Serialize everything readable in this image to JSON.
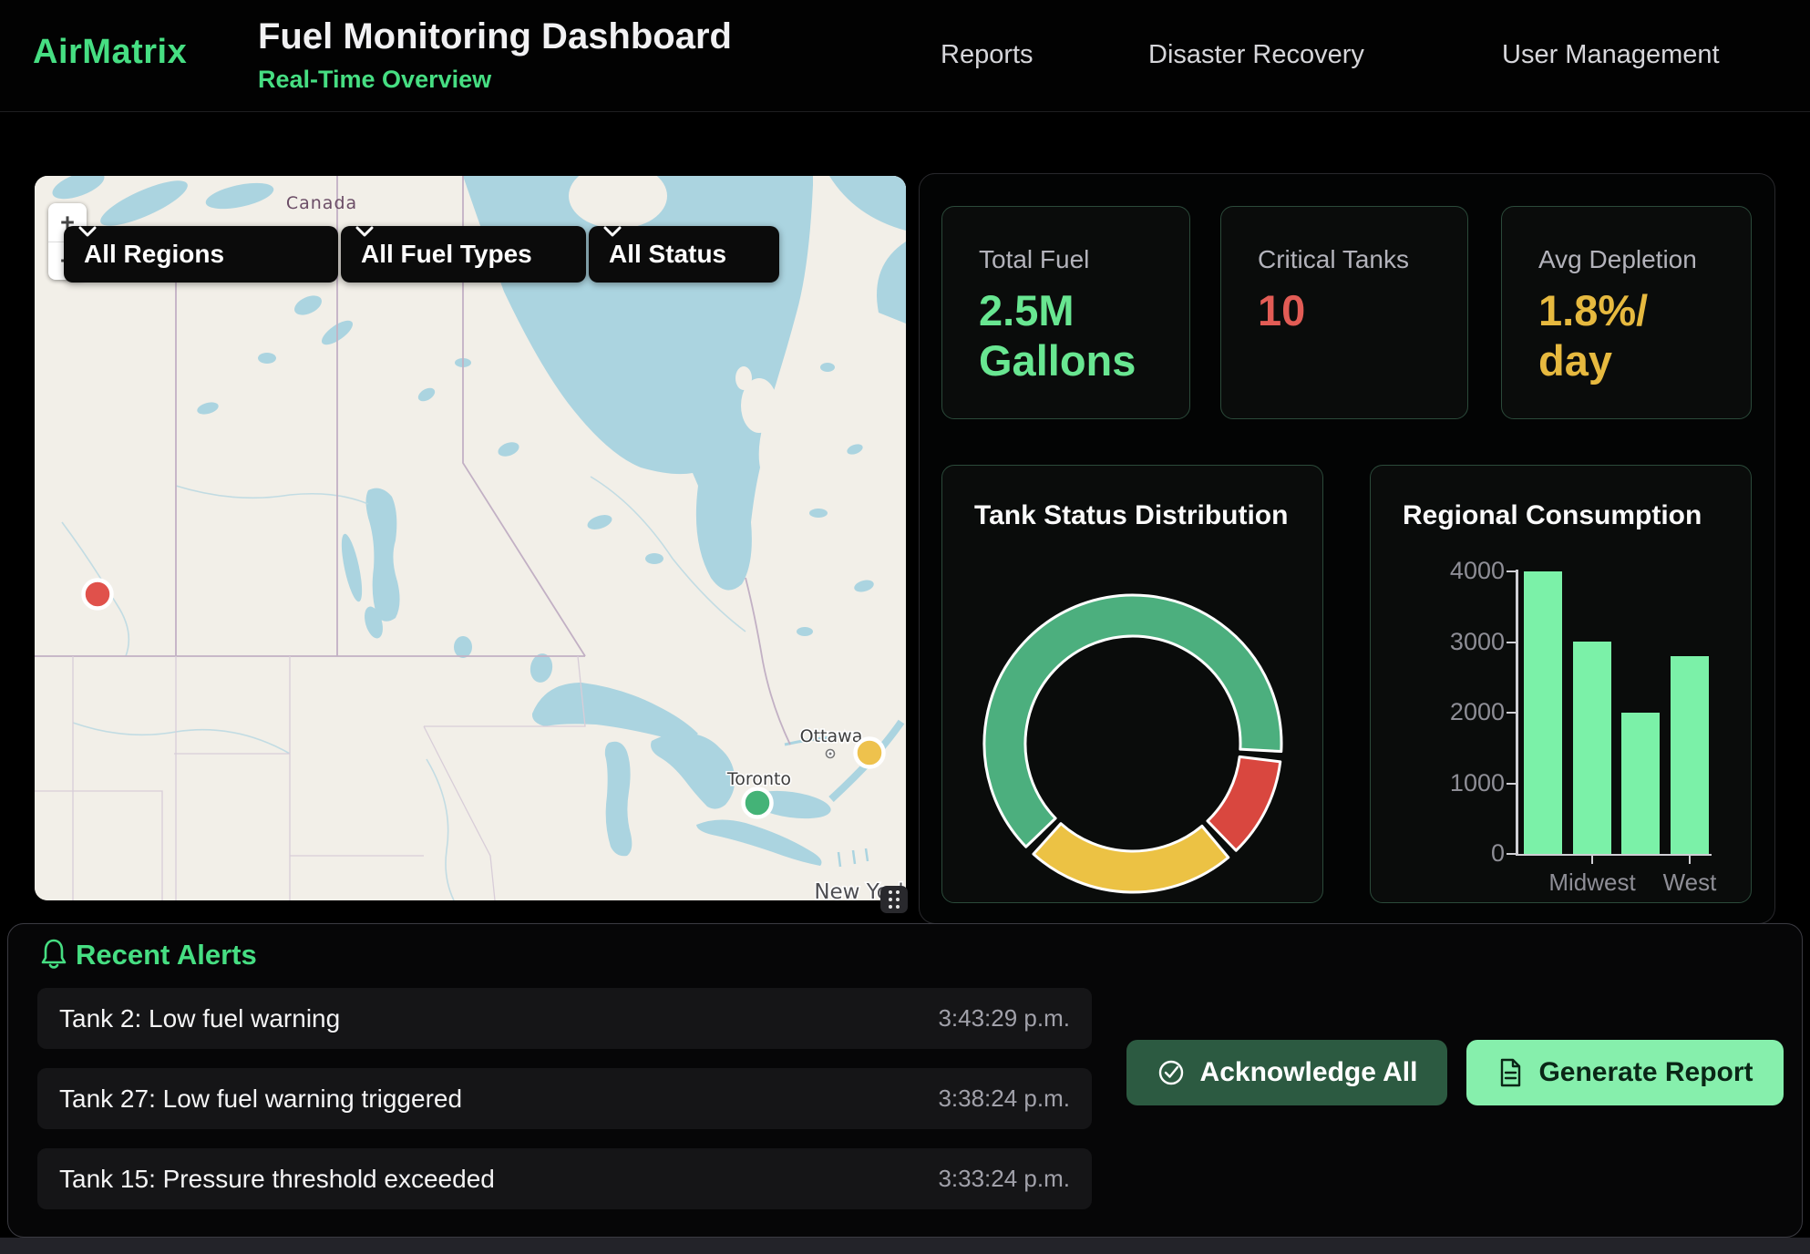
{
  "header": {
    "logo": "AirMatrix",
    "title": "Fuel Monitoring Dashboard",
    "subtitle": "Real-Time Overview",
    "nav": [
      {
        "label": "Reports"
      },
      {
        "label": "Disaster Recovery"
      },
      {
        "label": "User Management"
      }
    ]
  },
  "theme": {
    "accent_green": "#46de82",
    "value_green": "#68e691",
    "critical_red": "#e25c55",
    "warning_yellow": "#e6b93f",
    "bar_green": "#7bf1a8",
    "button_green": "#86efac",
    "dark_button_green": "#2c5a41"
  },
  "map": {
    "zoom_in": "+",
    "zoom_out": "−",
    "filters": [
      {
        "label": "All Regions"
      },
      {
        "label": "All Fuel Types"
      },
      {
        "label": "All Status"
      }
    ],
    "country_label": "Canada",
    "city_labels": [
      {
        "name": "Ottawa"
      },
      {
        "name": "Toronto"
      }
    ],
    "region_label": "New York",
    "markers": [
      {
        "status": "critical",
        "color": "#e0514b"
      },
      {
        "status": "warning",
        "color": "#eec24d"
      },
      {
        "status": "normal",
        "color": "#44b377"
      }
    ]
  },
  "stats": [
    {
      "label": "Total Fuel",
      "value_line1": "2.5M",
      "value_line2": "Gallons",
      "color": "#68e691"
    },
    {
      "label": "Critical Tanks",
      "value_line1": "10",
      "value_line2": "",
      "color": "#e25c55"
    },
    {
      "label": "Avg Depletion",
      "value_line1": "1.8%/",
      "value_line2": "day",
      "color": "#e6b93f"
    }
  ],
  "chart_data": [
    {
      "id": "tank_status",
      "type": "pie",
      "donut": true,
      "title": "Tank Status Distribution",
      "slices": [
        {
          "name": "green-segment",
          "pct": 63,
          "color": "#4caf7e",
          "start_deg": 226,
          "sweep_deg": 227
        },
        {
          "name": "red-segment",
          "pct": 11,
          "color": "#d9473f",
          "start_deg": 97,
          "sweep_deg": 39
        },
        {
          "name": "yellow-segment",
          "pct": 23,
          "color": "#ecc244",
          "start_deg": 140,
          "sweep_deg": 82
        }
      ],
      "separator_color": "#ffffff"
    },
    {
      "id": "regional_consumption",
      "type": "bar",
      "title": "Regional Consumption",
      "categories": [
        "",
        "Midwest",
        "",
        "West"
      ],
      "values": [
        4000,
        3000,
        2000,
        2800
      ],
      "ylim": [
        0,
        4000
      ],
      "yticks": [
        0,
        1000,
        2000,
        3000,
        4000
      ],
      "bar_color": "#7bf1a8",
      "axis_color": "#cfcfd4",
      "tick_label_color": "#8e8e96",
      "grid": false,
      "legend": "none"
    }
  ],
  "alerts": {
    "title": "Recent Alerts",
    "items": [
      {
        "text": "Tank 2: Low fuel warning",
        "time": "3:43:29 p.m."
      },
      {
        "text": "Tank 27: Low fuel warning triggered",
        "time": "3:38:24 p.m."
      },
      {
        "text": "Tank 15: Pressure threshold exceeded",
        "time": "3:33:24 p.m."
      }
    ],
    "buttons": [
      {
        "label": "Acknowledge All"
      },
      {
        "label": "Generate Report"
      }
    ]
  }
}
